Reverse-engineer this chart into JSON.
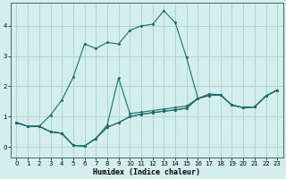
{
  "xlabel": "Humidex (Indice chaleur)",
  "background_color": "#d4eeee",
  "grid_color": "#aed4d4",
  "line_color": "#1a6b6b",
  "xlim": [
    -0.5,
    23.5
  ],
  "ylim": [
    -0.35,
    4.75
  ],
  "xticks": [
    0,
    1,
    2,
    3,
    4,
    5,
    6,
    7,
    8,
    9,
    10,
    11,
    12,
    13,
    14,
    15,
    16,
    17,
    18,
    19,
    20,
    21,
    22,
    23
  ],
  "yticks": [
    0,
    1,
    2,
    3,
    4
  ],
  "curves": [
    {
      "x": [
        0,
        1,
        2,
        3,
        4,
        5,
        6,
        7,
        8,
        9,
        10,
        11,
        12,
        13,
        14,
        15,
        16,
        17,
        18,
        19,
        20,
        21,
        22,
        23
      ],
      "y": [
        0.8,
        0.68,
        0.68,
        0.5,
        0.45,
        0.05,
        0.03,
        0.28,
        0.65,
        0.8,
        1.0,
        1.08,
        1.13,
        1.18,
        1.22,
        1.28,
        1.6,
        1.7,
        1.72,
        1.38,
        1.3,
        1.32,
        1.68,
        1.88
      ]
    },
    {
      "x": [
        0,
        1,
        2,
        3,
        4,
        5,
        6,
        7,
        8,
        9,
        10,
        11,
        12,
        13,
        14,
        15,
        16,
        17,
        18,
        19,
        20,
        21,
        22,
        23
      ],
      "y": [
        0.8,
        0.68,
        0.68,
        1.05,
        1.55,
        2.3,
        3.4,
        3.25,
        3.45,
        3.4,
        3.85,
        4.0,
        4.05,
        4.5,
        4.1,
        2.95,
        1.6,
        1.7,
        1.72,
        1.38,
        1.3,
        1.32,
        1.68,
        1.88
      ]
    },
    {
      "x": [
        0,
        1,
        2,
        3,
        4,
        5,
        6,
        7,
        8,
        9,
        10,
        11,
        12,
        13,
        14,
        15,
        16,
        17,
        18,
        19,
        20,
        21,
        22,
        23
      ],
      "y": [
        0.8,
        0.68,
        0.68,
        0.5,
        0.45,
        0.05,
        0.03,
        0.28,
        0.72,
        2.28,
        1.1,
        1.15,
        1.2,
        1.25,
        1.3,
        1.35,
        1.6,
        1.75,
        1.72,
        1.38,
        1.3,
        1.32,
        1.68,
        1.88
      ]
    },
    {
      "x": [
        0,
        1,
        2,
        3,
        4,
        5,
        6,
        7,
        8,
        9,
        10,
        11,
        12,
        13,
        14,
        15,
        16,
        17,
        18,
        19,
        20,
        21,
        22,
        23
      ],
      "y": [
        0.8,
        0.68,
        0.68,
        0.5,
        0.45,
        0.05,
        0.03,
        0.28,
        0.65,
        0.8,
        1.0,
        1.08,
        1.13,
        1.18,
        1.22,
        1.28,
        1.6,
        1.7,
        1.72,
        1.38,
        1.3,
        1.32,
        1.68,
        1.88
      ]
    }
  ]
}
